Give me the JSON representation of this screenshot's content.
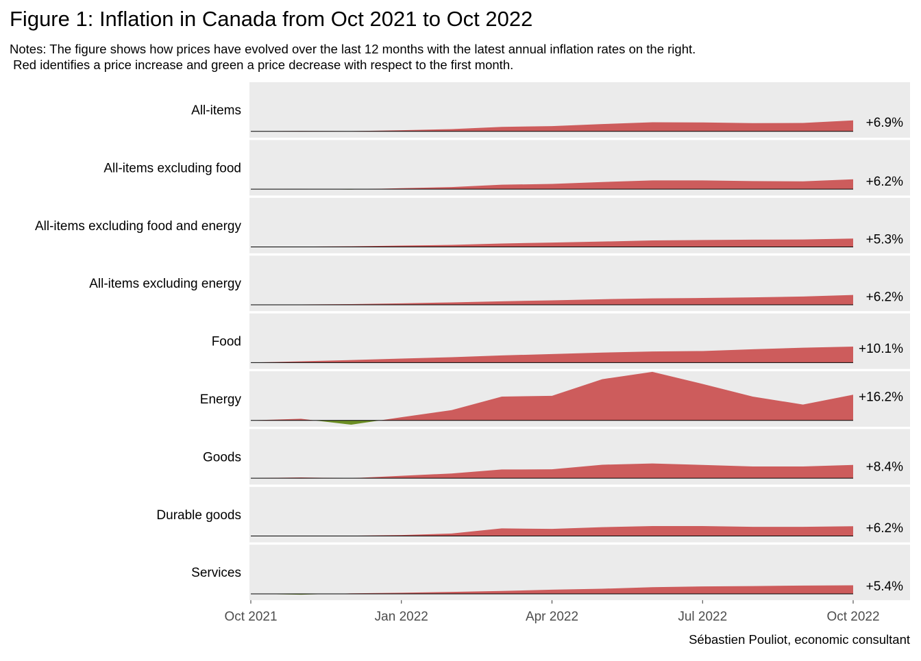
{
  "chart_data": {
    "type": "area",
    "title": "Figure 1: Inflation in Canada from Oct 2021 to Oct 2022",
    "notes": [
      "Notes: The figure shows how prices have evolved over the last 12 months with the latest annual inflation rates on the right.",
      " Red identifies a price increase and green a price decrease with respect to the first month."
    ],
    "caption": "Sébastien Pouliot, economic consultant",
    "categories": [
      "Oct 2021",
      null,
      null,
      "Jan 2022",
      null,
      null,
      "Apr 2022",
      null,
      null,
      "Jul 2022",
      null,
      null,
      "Oct 2022"
    ],
    "ylim": [
      -4,
      31
    ],
    "positive_color": "#cd5c5c",
    "negative_color": "#6b8e23",
    "series": [
      {
        "name": "All-items",
        "values": [
          0,
          0.2,
          0.1,
          0.7,
          1.4,
          2.8,
          3.3,
          4.6,
          5.7,
          5.6,
          5.2,
          5.3,
          6.9
        ],
        "value_label": "+6.9%"
      },
      {
        "name": "All-items excluding food",
        "values": [
          0,
          0.1,
          -0.2,
          0.6,
          1.3,
          2.8,
          3.3,
          4.5,
          5.5,
          5.5,
          5.1,
          4.9,
          6.2
        ],
        "value_label": "+6.2%"
      },
      {
        "name": "All-items excluding food and energy",
        "values": [
          0,
          0.2,
          0.4,
          0.9,
          1.3,
          2.2,
          2.8,
          3.4,
          4.1,
          4.4,
          4.6,
          4.7,
          5.3
        ],
        "value_label": "+5.3%"
      },
      {
        "name": "All-items excluding energy",
        "values": [
          0,
          0.2,
          0.4,
          0.9,
          1.5,
          2.2,
          2.8,
          3.5,
          4.0,
          4.3,
          4.7,
          5.2,
          6.2
        ],
        "value_label": "+6.2%"
      },
      {
        "name": "Food",
        "values": [
          0,
          0.8,
          1.6,
          2.5,
          3.4,
          4.5,
          5.4,
          6.3,
          7.0,
          7.3,
          8.4,
          9.4,
          10.1
        ],
        "value_label": "+10.1%"
      },
      {
        "name": "Energy",
        "values": [
          0,
          1,
          -2.7,
          2,
          6.5,
          15,
          15.5,
          26,
          30.6,
          23,
          15,
          10,
          16.2
        ],
        "value_label": "+16.2%"
      },
      {
        "name": "Goods",
        "values": [
          0,
          0.5,
          0,
          1.5,
          3,
          5.5,
          5.6,
          8.5,
          9.3,
          8.4,
          7.4,
          7.4,
          8.4
        ],
        "value_label": "+8.4%"
      },
      {
        "name": "Durable goods",
        "values": [
          0,
          0.2,
          0.2,
          0.6,
          1.6,
          4.8,
          4.5,
          5.6,
          6.3,
          6.3,
          5.8,
          5.8,
          6.2
        ],
        "value_label": "+6.2%"
      },
      {
        "name": "Services",
        "values": [
          0,
          -0.5,
          0.3,
          0.7,
          1.2,
          1.8,
          2.6,
          3.2,
          4.2,
          4.7,
          4.9,
          5.2,
          5.4
        ],
        "value_label": "+5.4%"
      }
    ]
  }
}
